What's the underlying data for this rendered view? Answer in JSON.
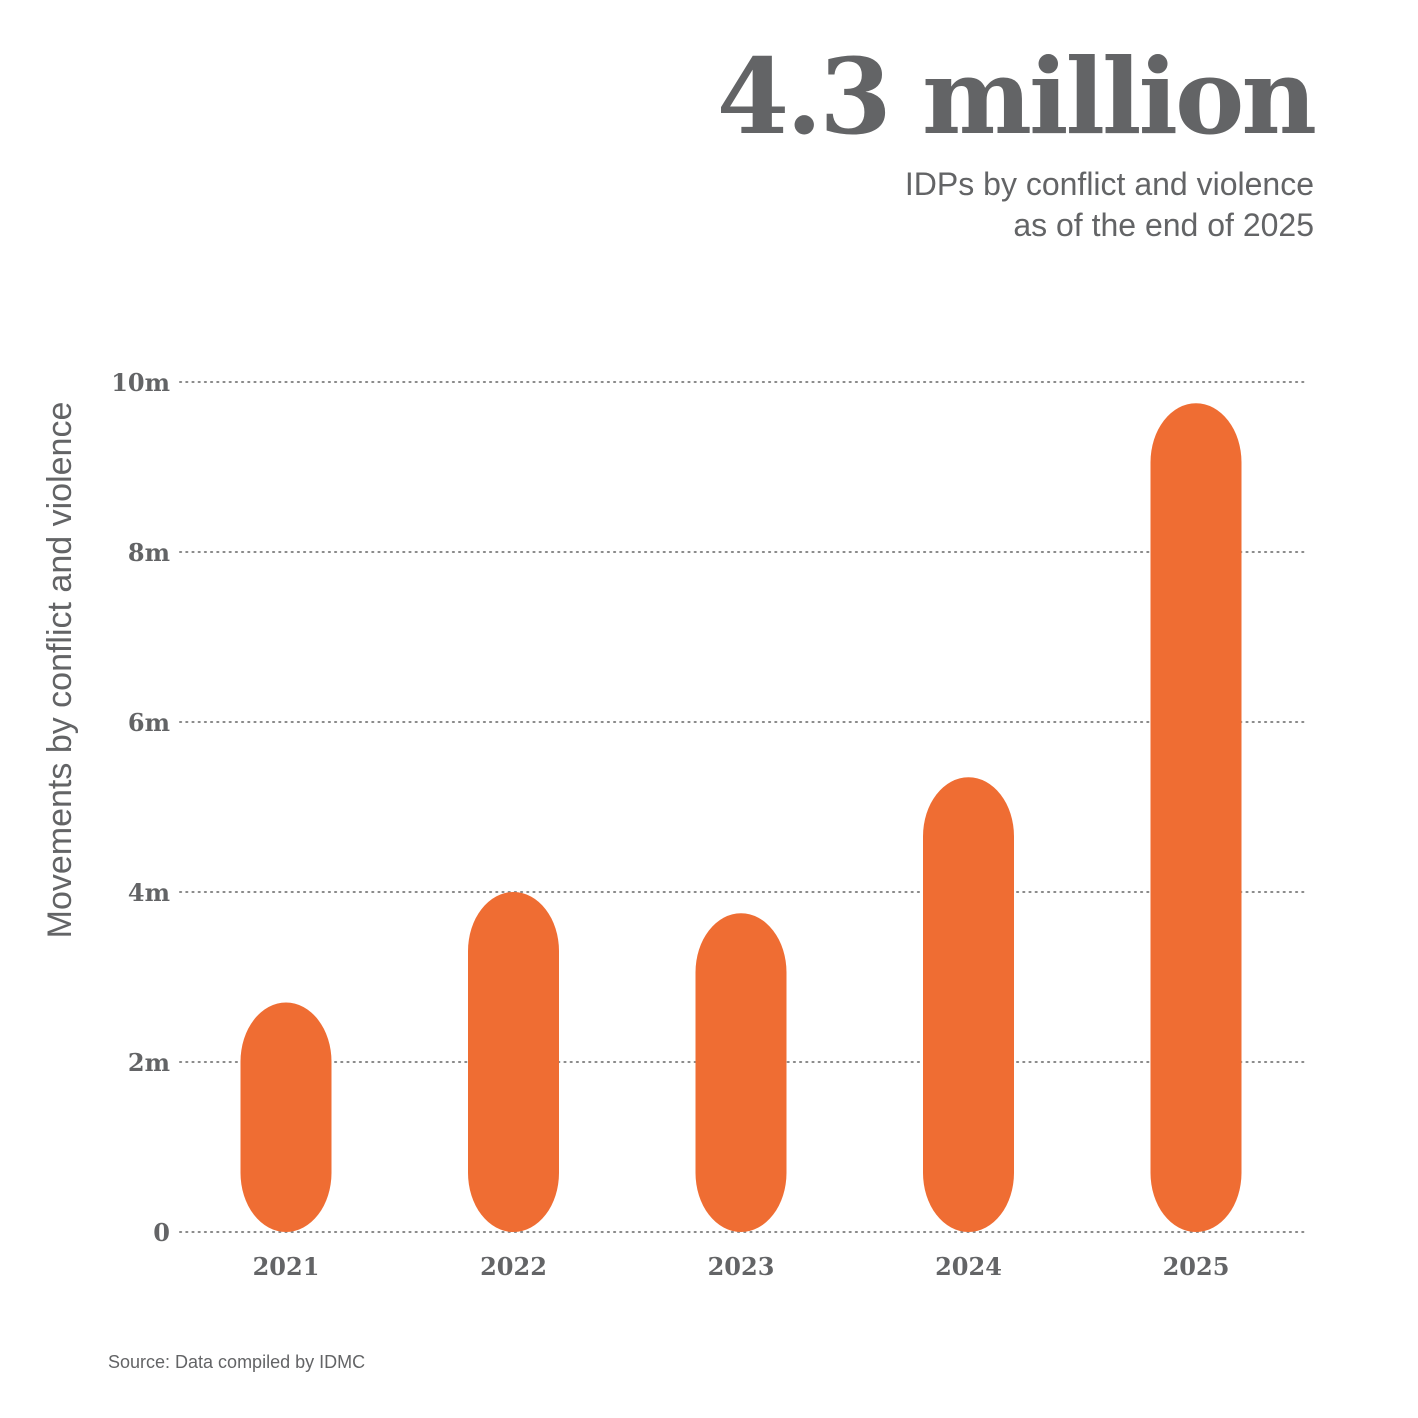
{
  "headline": {
    "value": "4.3 million",
    "subtitle_line1": "IDPs by conflict and violence",
    "subtitle_line2": "as of the end of 2025"
  },
  "source": "Source: Data compiled by IDMC",
  "colors": {
    "bar": "#EF6D33",
    "text": "#636466",
    "grid": "#8a8a8a"
  },
  "chart_data": {
    "type": "bar",
    "title": "",
    "xlabel": "",
    "ylabel": "Movements by conflict and violence",
    "categories": [
      "2021",
      "2022",
      "2023",
      "2024",
      "2025"
    ],
    "values": [
      2.7,
      4.0,
      3.75,
      5.35,
      9.75
    ],
    "unit": "million",
    "ylim": [
      0,
      10
    ],
    "yticks": [
      0,
      2,
      4,
      6,
      8,
      10
    ],
    "ytick_labels": [
      "0",
      "2m",
      "4m",
      "6m",
      "8m",
      "10m"
    ],
    "grid": "dotted horizontal",
    "bar_shape": "rounded pill"
  }
}
